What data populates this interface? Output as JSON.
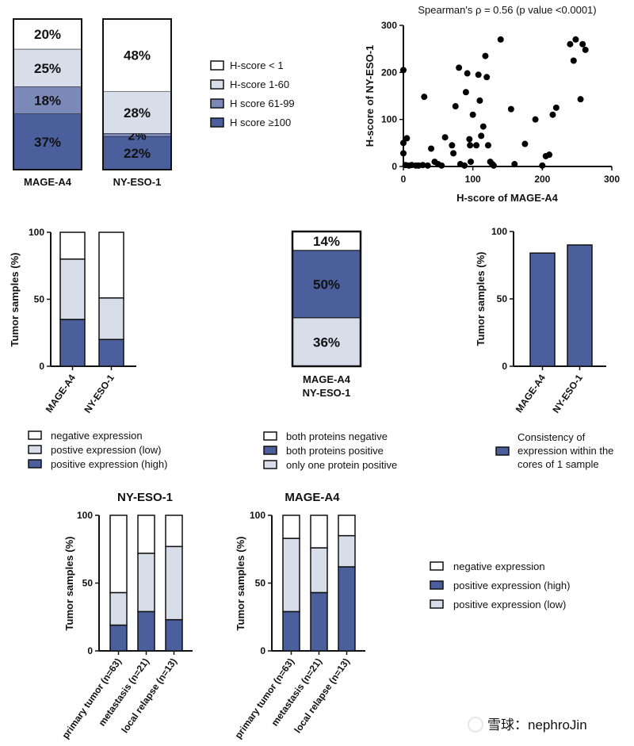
{
  "colors": {
    "white": "#ffffff",
    "light": "#d7dde9",
    "mid": "#7b89b8",
    "dark": "#4a5f9c",
    "edge": "#111111"
  },
  "chart_data": [
    {
      "type": "bar",
      "stacked": true,
      "categories": [
        "MAGE-A4",
        "NY-ESO-1"
      ],
      "series": [
        {
          "name": "H score ≥100",
          "values": [
            37,
            22
          ],
          "labels": [
            "37%",
            "22%"
          ]
        },
        {
          "name": "H score 61-99",
          "values": [
            18,
            2
          ],
          "labels": [
            "18%",
            "2%"
          ]
        },
        {
          "name": "H-score 1-60",
          "values": [
            25,
            28
          ],
          "labels": [
            "25%",
            "28%"
          ]
        },
        {
          "name": "H-score < 1",
          "values": [
            20,
            48
          ],
          "labels": [
            "20%",
            "48%"
          ]
        }
      ],
      "legend": [
        "H-score < 1",
        "H-score 1-60",
        "H score 61-99",
        "H score ≥100"
      ]
    },
    {
      "type": "scatter",
      "title": "Spearman's ρ = 0.56 (p value <0.0001)",
      "xlabel": "H-score of MAGE-A4",
      "ylabel": "H-score of NY-ESO-1",
      "xlim": [
        0,
        300
      ],
      "ylim": [
        0,
        300
      ],
      "xticks": [
        "0",
        "100",
        "200",
        "300"
      ],
      "yticks": [
        "0",
        "100",
        "200",
        "300"
      ],
      "points": [
        [
          0,
          205
        ],
        [
          0,
          50
        ],
        [
          0,
          28
        ],
        [
          3,
          3
        ],
        [
          8,
          2
        ],
        [
          12,
          3
        ],
        [
          18,
          2
        ],
        [
          22,
          2
        ],
        [
          28,
          3
        ],
        [
          35,
          2
        ],
        [
          5,
          60
        ],
        [
          30,
          148
        ],
        [
          40,
          38
        ],
        [
          45,
          10
        ],
        [
          50,
          5
        ],
        [
          55,
          2
        ],
        [
          60,
          62
        ],
        [
          70,
          45
        ],
        [
          72,
          28
        ],
        [
          75,
          128
        ],
        [
          80,
          210
        ],
        [
          82,
          5
        ],
        [
          88,
          2
        ],
        [
          90,
          158
        ],
        [
          92,
          198
        ],
        [
          95,
          58
        ],
        [
          96,
          45
        ],
        [
          97,
          10
        ],
        [
          100,
          110
        ],
        [
          105,
          45
        ],
        [
          108,
          195
        ],
        [
          110,
          140
        ],
        [
          112,
          65
        ],
        [
          115,
          85
        ],
        [
          118,
          235
        ],
        [
          120,
          190
        ],
        [
          122,
          45
        ],
        [
          125,
          10
        ],
        [
          128,
          5
        ],
        [
          130,
          2
        ],
        [
          140,
          270
        ],
        [
          155,
          122
        ],
        [
          160,
          5
        ],
        [
          175,
          48
        ],
        [
          190,
          100
        ],
        [
          200,
          2
        ],
        [
          205,
          22
        ],
        [
          210,
          25
        ],
        [
          215,
          110
        ],
        [
          220,
          125
        ],
        [
          240,
          260
        ],
        [
          245,
          225
        ],
        [
          248,
          270
        ],
        [
          255,
          143
        ],
        [
          258,
          260
        ],
        [
          262,
          248
        ]
      ]
    },
    {
      "type": "bar",
      "stacked": true,
      "categories": [
        "MAGE-A4",
        "NY-ESO-1"
      ],
      "ylabel": "Tumor samples (%)",
      "ylim": [
        0,
        100
      ],
      "yticks": [
        "0",
        "50",
        "100"
      ],
      "series": [
        {
          "name": "positive expression (high)",
          "values": [
            35,
            20
          ]
        },
        {
          "name": "postive expression (low)",
          "values": [
            45,
            31
          ]
        },
        {
          "name": "negative expression",
          "values": [
            20,
            49
          ]
        }
      ],
      "legend": [
        "negative expression",
        "postive expression (low)",
        "positive expression (high)"
      ]
    },
    {
      "type": "bar",
      "stacked": true,
      "categories": [
        "MAGE-A4 NY-ESO-1"
      ],
      "category_lines": [
        "MAGE-A4",
        "NY-ESO-1"
      ],
      "series": [
        {
          "name": "only one protein positive",
          "values": [
            36
          ],
          "labels": [
            "36%"
          ]
        },
        {
          "name": "both proteins positive",
          "values": [
            50
          ],
          "labels": [
            "50%"
          ]
        },
        {
          "name": "both proteins negative",
          "values": [
            14
          ],
          "labels": [
            "14%"
          ]
        }
      ],
      "legend": [
        "both proteins negative",
        "both proteins positive",
        "only one protein positive"
      ]
    },
    {
      "type": "bar",
      "categories": [
        "MAGE-A4",
        "NY-ESO-1"
      ],
      "ylabel": "Tumor samples (%)",
      "ylim": [
        0,
        100
      ],
      "yticks": [
        "0",
        "50",
        "100"
      ],
      "values": [
        84,
        90
      ],
      "legend_lines": [
        "Consistency of",
        "expression within the",
        "cores of 1 sample"
      ]
    },
    {
      "type": "bar",
      "stacked": true,
      "title": "NY-ESO-1",
      "categories": [
        "primary tumor (n=63)",
        "metastasis (n=21)",
        "local relapse (n=13)"
      ],
      "ylabel": "Tumor samples (%)",
      "ylim": [
        0,
        100
      ],
      "yticks": [
        "0",
        "50",
        "100"
      ],
      "series": [
        {
          "name": "positive expression (high)",
          "values": [
            19,
            29,
            23
          ]
        },
        {
          "name": "positive expression (low)",
          "values": [
            24,
            43,
            54
          ]
        },
        {
          "name": "negative expression",
          "values": [
            57,
            28,
            23
          ]
        }
      ]
    },
    {
      "type": "bar",
      "stacked": true,
      "title": "MAGE-A4",
      "categories": [
        "primary tumor (n=63)",
        "metastasis (n=21)",
        "local relapse (n=13)"
      ],
      "ylabel": "Tumor samples (%)",
      "ylim": [
        0,
        100
      ],
      "yticks": [
        "0",
        "50",
        "100"
      ],
      "series": [
        {
          "name": "positive expression (high)",
          "values": [
            29,
            43,
            62
          ]
        },
        {
          "name": "positive expression (low)",
          "values": [
            54,
            33,
            23
          ]
        },
        {
          "name": "negative expression",
          "values": [
            17,
            24,
            15
          ]
        }
      ],
      "legend": [
        "negative expression",
        "positive expression (high)",
        "positive expression (low)"
      ]
    }
  ],
  "watermark": "雪球：nephroJin"
}
